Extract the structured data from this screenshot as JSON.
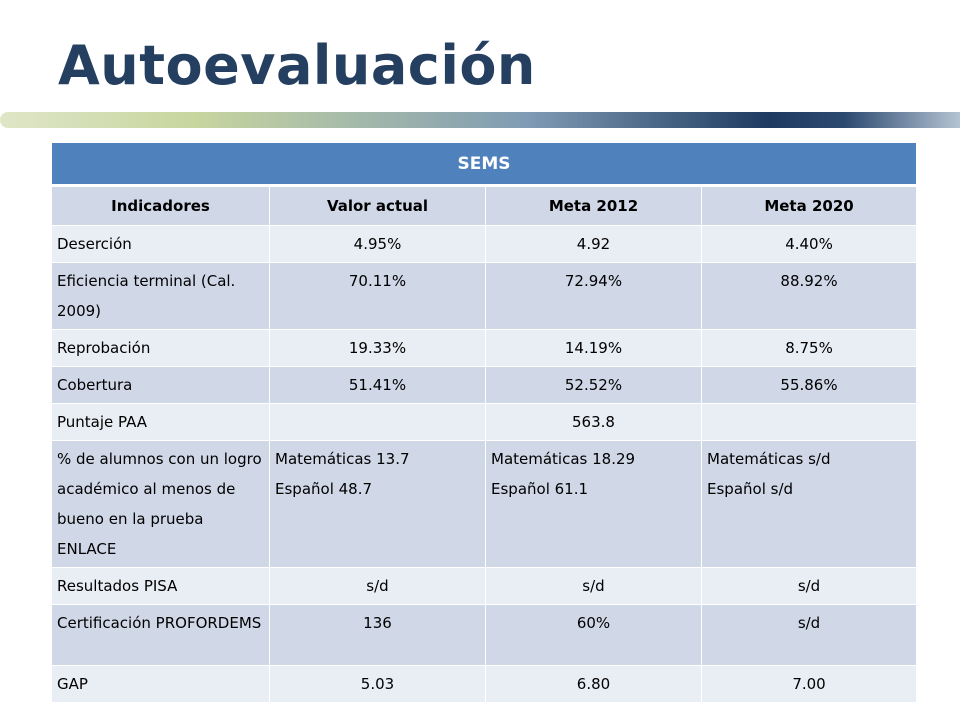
{
  "title": "Autoevaluación",
  "table": {
    "caption": "SEMS",
    "headers": [
      "Indicadores",
      "Valor actual",
      "Meta 2012",
      "Meta 2020"
    ],
    "rows": {
      "desercion": [
        "Deserción",
        "4.95%",
        "4.92",
        "4.40%"
      ],
      "eficiencia": [
        "Eficiencia terminal (Cal. 2009)",
        "70.11%",
        "72.94%",
        "88.92%"
      ],
      "reprobacion": [
        "Reprobación",
        "19.33%",
        "14.19%",
        "8.75%"
      ],
      "cobertura": [
        "Cobertura",
        "51.41%",
        "52.52%",
        "55.86%"
      ],
      "paa": [
        "Puntaje PAA",
        "",
        "563.8",
        ""
      ],
      "logro": {
        "label": "% de alumnos con un logro académico al menos de bueno en la prueba ENLACE",
        "valor_actual": [
          "Matemáticas 13.7",
          "Español 48.7"
        ],
        "meta_2012": [
          "Matemáticas 18.29",
          "Español 61.1"
        ],
        "meta_2020": [
          "Matemáticas s/d",
          "Español s/d"
        ]
      },
      "pisa": [
        "Resultados PISA",
        "s/d",
        "s/d",
        "s/d"
      ],
      "certificacion": [
        "Certificación PROFORDEMS",
        "136",
        "60%",
        "s/d"
      ],
      "gap": [
        "GAP",
        "5.03",
        "6.80",
        "7.00"
      ]
    }
  },
  "colors": {
    "title": "#243f60",
    "header_blue": "#4f81bd",
    "row_dark": "#d0d8e8",
    "row_light": "#e9edf4"
  }
}
